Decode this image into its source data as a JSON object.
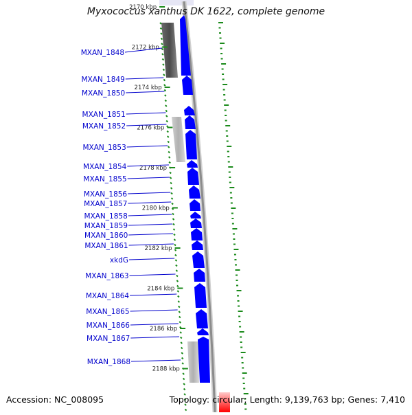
{
  "title": "Myxococcus xanthus DK 1622, complete genome",
  "footer": {
    "accession": "Accession: NC_008095",
    "topology": "Topology: circular; Length: 9,139,763 bp; Genes: 7,410"
  },
  "colors": {
    "forward_gene": "#0000ff",
    "gene_label": "#0000cc",
    "backbone": "#8c8c8c",
    "tick": "#1a8a1a",
    "highlight": "#ff0000"
  },
  "ruler": [
    {
      "label": "2170 kbp",
      "kbp": 2170
    },
    {
      "label": "2172 kbp",
      "kbp": 2172
    },
    {
      "label": "2174 kbp",
      "kbp": 2174
    },
    {
      "label": "2176 kbp",
      "kbp": 2176
    },
    {
      "label": "2178 kbp",
      "kbp": 2178
    },
    {
      "label": "2180 kbp",
      "kbp": 2180
    },
    {
      "label": "2182 kbp",
      "kbp": 2182
    },
    {
      "label": "2184 kbp",
      "kbp": 2184
    },
    {
      "label": "2186 kbp",
      "kbp": 2186
    },
    {
      "label": "2188 kbp",
      "kbp": 2188
    }
  ],
  "genes": [
    {
      "name": "MXAN_1848"
    },
    {
      "name": "MXAN_1849"
    },
    {
      "name": "MXAN_1850"
    },
    {
      "name": "MXAN_1851"
    },
    {
      "name": "MXAN_1852"
    },
    {
      "name": "MXAN_1853"
    },
    {
      "name": "MXAN_1854"
    },
    {
      "name": "MXAN_1855"
    },
    {
      "name": "MXAN_1856"
    },
    {
      "name": "MXAN_1857"
    },
    {
      "name": "MXAN_1858"
    },
    {
      "name": "MXAN_1859"
    },
    {
      "name": "MXAN_1860"
    },
    {
      "name": "MXAN_1861"
    },
    {
      "name": "xkdG"
    },
    {
      "name": "MXAN_1863"
    },
    {
      "name": "MXAN_1864"
    },
    {
      "name": "MXAN_1865"
    },
    {
      "name": "MXAN_1866"
    },
    {
      "name": "MXAN_1867"
    },
    {
      "name": "MXAN_1868"
    }
  ]
}
